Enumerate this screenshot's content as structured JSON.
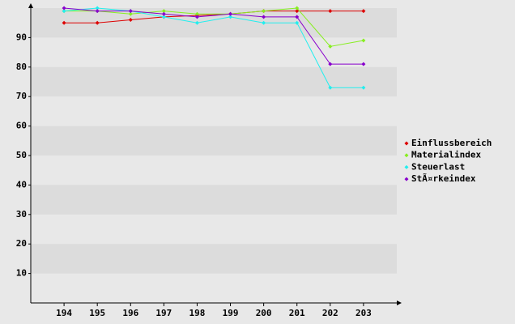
{
  "chart_data": {
    "type": "line",
    "categories": [
      "194",
      "195",
      "196",
      "197",
      "198",
      "199",
      "200",
      "201",
      "202",
      "203"
    ],
    "series": [
      {
        "name": "Einflussbereich",
        "color": "#dd0000",
        "values": [
          95,
          95,
          96,
          97,
          97.5,
          98,
          99,
          99,
          99,
          99
        ]
      },
      {
        "name": "Materialindex",
        "color": "#88ee22",
        "values": [
          99,
          99,
          98,
          99,
          98,
          98,
          99,
          100,
          87,
          89
        ]
      },
      {
        "name": "Steuerlast",
        "color": "#22eeee",
        "values": [
          99,
          100,
          99,
          97,
          95,
          97,
          95,
          95,
          73,
          73
        ]
      },
      {
        "name": "StÃ¤rkeindex",
        "color": "#8800cc",
        "values": [
          100,
          99,
          99,
          98,
          97,
          98,
          97,
          97,
          81,
          81
        ]
      }
    ],
    "ylim": [
      0,
      100
    ],
    "yticks": [
      10,
      20,
      30,
      40,
      50,
      60,
      70,
      80,
      90
    ],
    "grid": true,
    "legend": "right"
  }
}
